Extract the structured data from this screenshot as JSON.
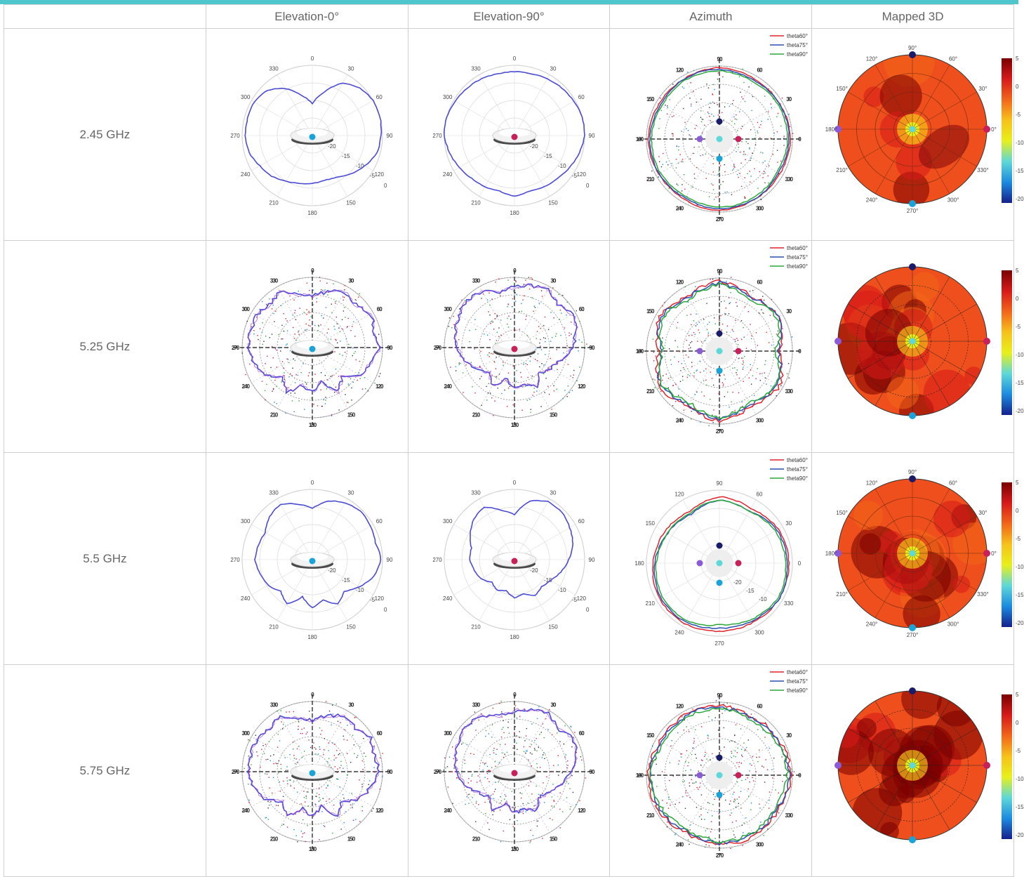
{
  "header": {
    "blank": "",
    "columns": [
      "Elevation-0°",
      "Elevation-90°",
      "Azimuth",
      "Mapped 3D"
    ]
  },
  "legend_labels": [
    "theta60°",
    "theta75°",
    "theta90°"
  ],
  "colors": {
    "accent_bar": "#4fc6cc",
    "pattern_blue": "#4b4bd6",
    "theta60": "#e0242c",
    "theta75": "#2a4fb5",
    "theta90": "#2ba83a",
    "dot_cyan": "#1aa3d8",
    "dot_magenta": "#c8205a",
    "dot_purple": "#8a5ad8",
    "dot_navy": "#1b1b6b",
    "heat_scale": [
      "#7a0000",
      "#d71a1a",
      "#f2661a",
      "#f7c21a",
      "#e7f01a",
      "#5ed8d8",
      "#1b8be0",
      "#14208c"
    ]
  },
  "colorbar_ticks": [
    "5",
    "0",
    "-5",
    "-10",
    "-15",
    "-20"
  ],
  "polar_ticks": {
    "elevation_angles": [
      "0",
      "30",
      "60",
      "90",
      "120",
      "150",
      "180",
      "210",
      "240",
      "270",
      "300",
      "330"
    ],
    "azimuth_angles": [
      "90",
      "60",
      "30",
      "0",
      "330",
      "300",
      "270",
      "240",
      "210",
      "180",
      "150",
      "120"
    ],
    "radial_labels": [
      "-20",
      "-15",
      "-10",
      "-5",
      "0"
    ]
  },
  "rows": [
    {
      "frequency": "2.45 GHz",
      "clean": true
    },
    {
      "frequency": "5.25 GHz",
      "clean": false
    },
    {
      "frequency": "5.5 GHz",
      "clean": true
    },
    {
      "frequency": "5.75 GHz",
      "clean": false
    }
  ],
  "chart_data": [
    {
      "type": "polar",
      "row": "2.45 GHz",
      "column": "Elevation-0°",
      "theta_deg": [
        0,
        15,
        30,
        45,
        60,
        75,
        90,
        105,
        120,
        135,
        150,
        165,
        180,
        195,
        210,
        225,
        240,
        255,
        270,
        285,
        300,
        315,
        330,
        345
      ],
      "r_db": [
        -12,
        -8,
        -3,
        -1,
        0,
        0,
        -0.5,
        -1,
        -3,
        -5,
        -7,
        -7.5,
        -7,
        -6.5,
        -5.5,
        -4,
        -3,
        -1.5,
        -1,
        -1,
        -1,
        -2,
        -5,
        -9
      ]
    },
    {
      "type": "polar",
      "row": "2.45 GHz",
      "column": "Elevation-90°",
      "theta_deg": [
        0,
        15,
        30,
        45,
        60,
        75,
        90,
        105,
        120,
        135,
        150,
        165,
        180,
        195,
        210,
        225,
        240,
        255,
        270,
        285,
        300,
        315,
        330,
        345
      ],
      "r_db": [
        -2,
        -2,
        -1.5,
        -1,
        -0.5,
        0,
        0,
        -1,
        -2,
        -3,
        -3.5,
        -4,
        -3,
        -4,
        -3.5,
        -3,
        -2,
        -1,
        0,
        0,
        -0.5,
        -1,
        -1.5,
        -2
      ]
    },
    {
      "type": "polar",
      "row": "2.45 GHz",
      "column": "Azimuth",
      "series_names": [
        "theta60°",
        "theta75°",
        "theta90°"
      ],
      "theta_deg": [
        0,
        30,
        60,
        90,
        120,
        150,
        180,
        210,
        240,
        270,
        300,
        330
      ],
      "r_db": [
        [
          -0.5,
          -1,
          -1,
          -0.5,
          -1,
          -1,
          -0.5,
          -1,
          -1,
          -0.5,
          -1,
          -1
        ],
        [
          -1,
          -1.5,
          -1,
          -1,
          -1.5,
          -1,
          -1,
          -1.5,
          -1,
          -1,
          -1.5,
          -1
        ],
        [
          -1.5,
          -2,
          -1.5,
          -1.5,
          -2,
          -1.5,
          -1.5,
          -2,
          -1.5,
          -1.5,
          -2,
          -1.5
        ]
      ]
    },
    {
      "type": "heatmap",
      "row": "2.45 GHz",
      "column": "Mapped 3D",
      "scale_db": [
        5,
        -20
      ]
    },
    {
      "type": "polar",
      "row": "5.25 GHz",
      "column": "Elevation-0°"
    },
    {
      "type": "polar",
      "row": "5.25 GHz",
      "column": "Elevation-90°"
    },
    {
      "type": "polar",
      "row": "5.25 GHz",
      "column": "Azimuth",
      "series_names": [
        "theta60°",
        "theta75°",
        "theta90°"
      ]
    },
    {
      "type": "heatmap",
      "row": "5.25 GHz",
      "column": "Mapped 3D",
      "scale_db": [
        5,
        -20
      ]
    },
    {
      "type": "polar",
      "row": "5.5 GHz",
      "column": "Elevation-0°",
      "theta_deg": [
        0,
        15,
        30,
        45,
        60,
        75,
        90,
        105,
        120,
        135,
        150,
        165,
        180,
        195,
        210,
        225,
        240,
        255,
        270,
        285,
        300,
        315,
        330,
        345
      ],
      "r_db": [
        -6,
        -3,
        -1.5,
        -0.5,
        -1,
        -1.5,
        -0.5,
        -2,
        -5,
        -8,
        -6,
        -9,
        -7,
        -10,
        -6,
        -8,
        -6,
        -5,
        -4,
        -4.5,
        -5,
        -3,
        -2,
        -4
      ]
    },
    {
      "type": "polar",
      "row": "5.5 GHz",
      "column": "Elevation-90°",
      "theta_deg": [
        0,
        15,
        30,
        45,
        60,
        75,
        90,
        105,
        120,
        135,
        150,
        165,
        180,
        195,
        210,
        225,
        240,
        255,
        270,
        285,
        300,
        315,
        330,
        345
      ],
      "r_db": [
        -8,
        -3,
        -1,
        -1,
        -2,
        -3,
        -5,
        -7,
        -9,
        -10,
        -9,
        -11,
        -10,
        -12,
        -11,
        -12,
        -10,
        -9,
        -8,
        -8,
        -6,
        -4,
        -3,
        -6
      ]
    },
    {
      "type": "polar",
      "row": "5.5 GHz",
      "column": "Azimuth",
      "series_names": [
        "theta60°",
        "theta75°",
        "theta90°"
      ],
      "theta_deg": [
        0,
        30,
        60,
        90,
        120,
        150,
        180,
        210,
        240,
        270,
        300,
        330
      ],
      "r_db": [
        [
          -2,
          -3,
          -1.5,
          -1,
          -1,
          -1.5,
          -1.5,
          -1,
          -1,
          -2,
          -3,
          -4
        ],
        [
          -3,
          -4,
          -2,
          -1.5,
          -1,
          -2,
          -2.5,
          -1.5,
          -1.5,
          -2.5,
          -4,
          -5
        ],
        [
          -3,
          -4,
          -2.5,
          -2,
          -1.5,
          -2.5,
          -3.5,
          -2,
          -2,
          -3,
          -4,
          -4.5
        ]
      ]
    },
    {
      "type": "heatmap",
      "row": "5.5 GHz",
      "column": "Mapped 3D",
      "scale_db": [
        5,
        -20
      ]
    },
    {
      "type": "polar",
      "row": "5.75 GHz",
      "column": "Elevation-0°"
    },
    {
      "type": "polar",
      "row": "5.75 GHz",
      "column": "Elevation-90°"
    },
    {
      "type": "polar",
      "row": "5.75 GHz",
      "column": "Azimuth",
      "series_names": [
        "theta60°",
        "theta75°",
        "theta90°"
      ]
    },
    {
      "type": "heatmap",
      "row": "5.75 GHz",
      "column": "Mapped 3D",
      "scale_db": [
        5,
        -20
      ]
    }
  ]
}
